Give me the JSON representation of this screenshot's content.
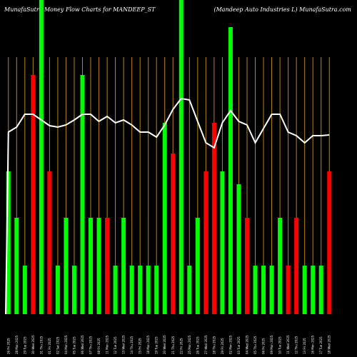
{
  "header": {
    "left_title": "MunafaSutra  Money Flow  Charts for MANDEEP_ST",
    "right_title": "(Mandeep Auto  Industries L) MunafaSutra.com"
  },
  "colors": {
    "background": "#000000",
    "up": "#00ff00",
    "down": "#ff0000",
    "grid": "#b8860b",
    "line": "#ffffff",
    "text": "#ffffff"
  },
  "chart_data": {
    "type": "bar",
    "title": "MunafaSutra  Money Flow  Charts for MANDEEP_ST",
    "grid": true,
    "categories": [
      "26 Fri 2025",
      "28 Mon 2025",
      "29 Tue 2025",
      "30 Wed 2025",
      "31 Thu 2025",
      "01 Fri 2025",
      "02 Sat 2025",
      "04 Mon 2025",
      "05 Tue 2025",
      "06 Wed 2025",
      "07 Thu 2025",
      "08 Fri 2025",
      "11 Mon 2025",
      "12 Tue 2025",
      "13 Wed 2025",
      "14 Thu 2025",
      "15 Fri 2025",
      "18 Mon 2025",
      "19 Tue 2025",
      "20 Wed 2025",
      "21 Thu 2025",
      "22 Fri 2025",
      "25 Mon 2025",
      "26 Tue 2025",
      "27 Wed 2025",
      "28 Thu 2025",
      "29 Fri 2025",
      "02 Mon 2025",
      "03 Tue 2025",
      "04 Wed 2025",
      "05 Thu 2025",
      "06 Fri 2025",
      "09 Mon 2025",
      "10 Tue 2025",
      "11 Wed 2025",
      "12 Thu 2025",
      "13 Fri 2025",
      "16 Mon 2025",
      "17 Tue 2025",
      "18 Wed 2025"
    ],
    "bars": [
      {
        "value": 200,
        "color": "up"
      },
      {
        "value": 135,
        "color": "up"
      },
      {
        "value": 68,
        "color": "up"
      },
      {
        "value": 335,
        "color": "down"
      },
      {
        "value": 440,
        "color": "up"
      },
      {
        "value": 200,
        "color": "down"
      },
      {
        "value": 68,
        "color": "up"
      },
      {
        "value": 135,
        "color": "up"
      },
      {
        "value": 68,
        "color": "up"
      },
      {
        "value": 335,
        "color": "up"
      },
      {
        "value": 135,
        "color": "up"
      },
      {
        "value": 135,
        "color": "up"
      },
      {
        "value": 135,
        "color": "down"
      },
      {
        "value": 68,
        "color": "up"
      },
      {
        "value": 135,
        "color": "up"
      },
      {
        "value": 68,
        "color": "up"
      },
      {
        "value": 68,
        "color": "up"
      },
      {
        "value": 68,
        "color": "up"
      },
      {
        "value": 68,
        "color": "up"
      },
      {
        "value": 268,
        "color": "up"
      },
      {
        "value": 225,
        "color": "down"
      },
      {
        "value": 440,
        "color": "up"
      },
      {
        "value": 68,
        "color": "up"
      },
      {
        "value": 135,
        "color": "up"
      },
      {
        "value": 200,
        "color": "down"
      },
      {
        "value": 268,
        "color": "down"
      },
      {
        "value": 200,
        "color": "up"
      },
      {
        "value": 402,
        "color": "up"
      },
      {
        "value": 182,
        "color": "up"
      },
      {
        "value": 135,
        "color": "down"
      },
      {
        "value": 68,
        "color": "up"
      },
      {
        "value": 68,
        "color": "up"
      },
      {
        "value": 68,
        "color": "up"
      },
      {
        "value": 135,
        "color": "up"
      },
      {
        "value": 68,
        "color": "down"
      },
      {
        "value": 135,
        "color": "down"
      },
      {
        "value": 68,
        "color": "up"
      },
      {
        "value": 68,
        "color": "up"
      },
      {
        "value": 68,
        "color": "up"
      },
      {
        "value": 200,
        "color": "down"
      }
    ],
    "line": [
      255,
      262,
      280,
      280,
      272,
      264,
      262,
      265,
      272,
      280,
      280,
      270,
      277,
      268,
      272,
      265,
      255,
      255,
      248,
      265,
      287,
      302,
      300,
      270,
      240,
      233,
      268,
      285,
      270,
      265,
      240,
      260,
      280,
      280,
      255,
      250,
      240,
      250,
      250,
      251
    ],
    "ylim": [
      0,
      440
    ]
  }
}
